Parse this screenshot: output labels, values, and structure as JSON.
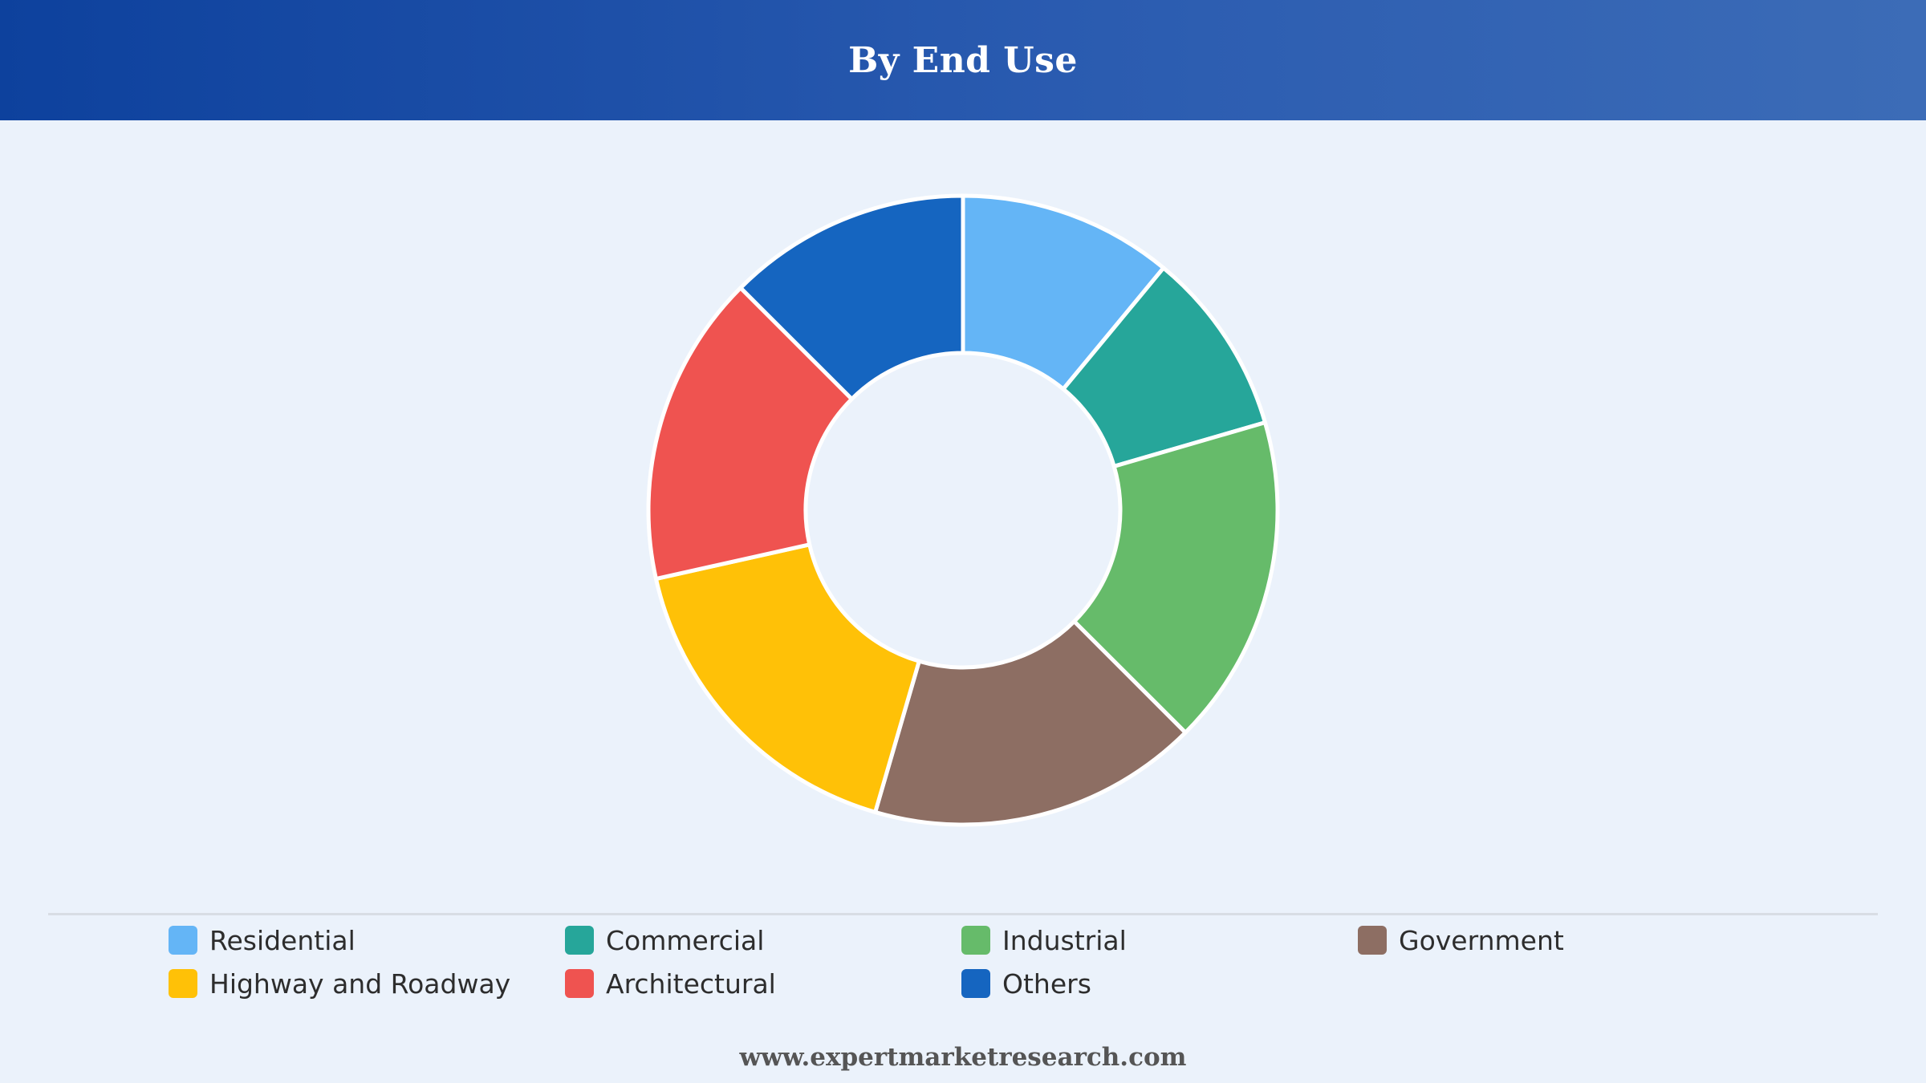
{
  "header": {
    "title": "By End Use"
  },
  "chart_data": {
    "type": "pie",
    "title": "By End Use",
    "donut": true,
    "legend_position": "bottom",
    "categories": [
      "Residential",
      "Commercial",
      "Industrial",
      "Government",
      "Highway and Roadway",
      "Architectural",
      "Others"
    ],
    "values": [
      11,
      9.5,
      17,
      17,
      17,
      16,
      12.5
    ],
    "colors": [
      "#64b5f6",
      "#26a69a",
      "#66bb6a",
      "#8d6e63",
      "#ffc107",
      "#ef5350",
      "#1565c0"
    ]
  },
  "legend": {
    "items": [
      {
        "label": "Residential",
        "color": "#64b5f6"
      },
      {
        "label": "Commercial",
        "color": "#26a69a"
      },
      {
        "label": "Industrial",
        "color": "#66bb6a"
      },
      {
        "label": "Government",
        "color": "#8d6e63"
      },
      {
        "label": "Highway and Roadway",
        "color": "#ffc107"
      },
      {
        "label": "Architectural",
        "color": "#ef5350"
      },
      {
        "label": "Others",
        "color": "#1565c0"
      }
    ]
  },
  "footer": {
    "url": "www.expertmarketresearch.com"
  }
}
